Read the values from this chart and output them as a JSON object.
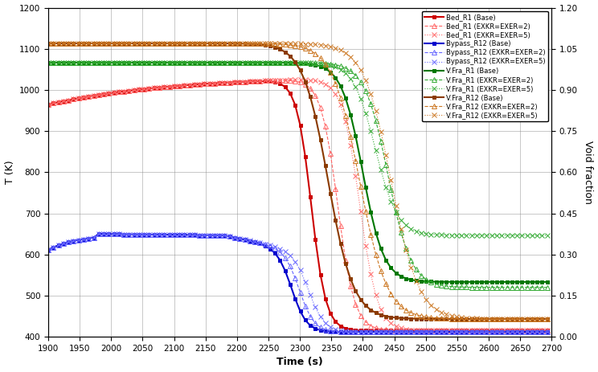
{
  "xlabel": "Time (s)",
  "ylabel_left": "T (K)",
  "ylabel_right": "Void fraction",
  "xlim": [
    1900,
    2700
  ],
  "ylim_left": [
    400,
    1200
  ],
  "ylim_right": [
    0,
    1.2
  ],
  "yticks_left": [
    400,
    500,
    600,
    700,
    800,
    900,
    1000,
    1100,
    1200
  ],
  "yticks_right": [
    0,
    0.15,
    0.3,
    0.45,
    0.6,
    0.75,
    0.9,
    1.05,
    1.2
  ],
  "xticks": [
    1900,
    1950,
    2000,
    2050,
    2100,
    2150,
    2200,
    2250,
    2300,
    2350,
    2400,
    2450,
    2500,
    2550,
    2600,
    2650,
    2700
  ],
  "series": {
    "Bed_R1_Base": {
      "color": "#CC0000",
      "linestyle": "-",
      "marker": "s",
      "label": "Bed_R1 (Base)",
      "lw": 1.5,
      "ms": 3.5,
      "mfc": "#CC0000",
      "mec": "#CC0000"
    },
    "Bed_R1_2": {
      "color": "#FF6666",
      "linestyle": "--",
      "marker": "^",
      "label": "Bed_R1 (EXKR=EXER=2)",
      "lw": 0.8,
      "ms": 4.0,
      "mfc": "none",
      "mec": "#FF6666"
    },
    "Bed_R1_5": {
      "color": "#FF6666",
      "linestyle": ":",
      "marker": "x",
      "label": "Bed_R1 (EXKR=EXER=5)",
      "lw": 0.8,
      "ms": 4.0,
      "mfc": "#FF6666",
      "mec": "#FF6666"
    },
    "Bypass_R12_Base": {
      "color": "#0000CC",
      "linestyle": "-",
      "marker": "s",
      "label": "Bypass_R12 (Base)",
      "lw": 1.5,
      "ms": 3.5,
      "mfc": "#0000CC",
      "mec": "#0000CC"
    },
    "Bypass_R12_2": {
      "color": "#6666FF",
      "linestyle": "--",
      "marker": "^",
      "label": "Bypass_R12 (EXKR=EXER=2)",
      "lw": 0.8,
      "ms": 4.0,
      "mfc": "none",
      "mec": "#6666FF"
    },
    "Bypass_R12_5": {
      "color": "#6666FF",
      "linestyle": ":",
      "marker": "x",
      "label": "Bypass_R12 (EXKR=EXER=5)",
      "lw": 0.8,
      "ms": 4.0,
      "mfc": "#6666FF",
      "mec": "#6666FF"
    },
    "VFra_R1_Base": {
      "color": "#007700",
      "linestyle": "-",
      "marker": "s",
      "label": "V.Fra_R1 (Base)",
      "lw": 1.5,
      "ms": 3.5,
      "mfc": "#007700",
      "mec": "#007700"
    },
    "VFra_R1_2": {
      "color": "#33AA33",
      "linestyle": "--",
      "marker": "^",
      "label": "V.Fra_R1 (EXKR=EXER=2)",
      "lw": 0.8,
      "ms": 4.0,
      "mfc": "none",
      "mec": "#33AA33"
    },
    "VFra_R1_5": {
      "color": "#33AA33",
      "linestyle": ":",
      "marker": "x",
      "label": "V.Fra_R1 (EXKR=EXER=5)",
      "lw": 0.8,
      "ms": 4.0,
      "mfc": "#33AA33",
      "mec": "#33AA33"
    },
    "VFra_R12_Base": {
      "color": "#8B3A00",
      "linestyle": "-",
      "marker": "s",
      "label": "V.Fra_R12 (Base)",
      "lw": 1.5,
      "ms": 3.5,
      "mfc": "#8B3A00",
      "mec": "#8B3A00"
    },
    "VFra_R12_2": {
      "color": "#CC7722",
      "linestyle": "--",
      "marker": "^",
      "label": "V.Fra_R12 (EXKR=EXER=2)",
      "lw": 0.8,
      "ms": 4.0,
      "mfc": "none",
      "mec": "#CC7722"
    },
    "VFra_R12_5": {
      "color": "#CC7722",
      "linestyle": ":",
      "marker": "x",
      "label": "V.Fra_R12 (EXKR=EXER=5)",
      "lw": 0.8,
      "ms": 4.0,
      "mfc": "#CC7722",
      "mec": "#CC7722"
    }
  }
}
